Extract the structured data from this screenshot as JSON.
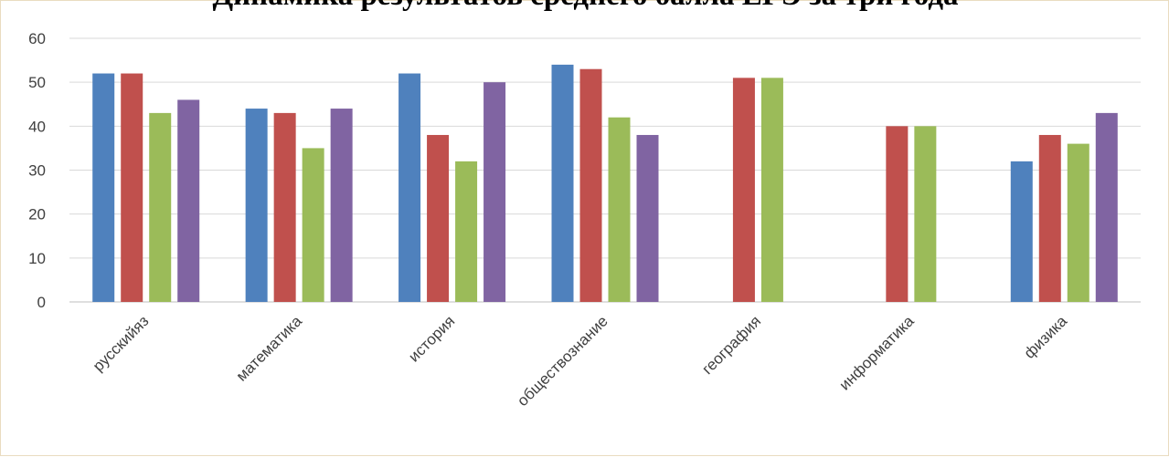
{
  "chart_data": {
    "type": "bar",
    "title": "Динамика результатов среднего балла ЕГЭ за три года",
    "categories": [
      "русскийяз",
      "математика",
      "история",
      "обществознание",
      "география",
      "информатика",
      "физика"
    ],
    "series": [
      {
        "values": [
          52,
          44,
          52,
          54,
          null,
          null,
          32
        ],
        "color": "#4f81bd"
      },
      {
        "values": [
          52,
          43,
          38,
          53,
          51,
          40,
          38
        ],
        "color": "#c0504d"
      },
      {
        "values": [
          43,
          35,
          32,
          42,
          51,
          40,
          36
        ],
        "color": "#9bbb59"
      },
      {
        "values": [
          46,
          44,
          50,
          38,
          null,
          null,
          43
        ],
        "color": "#8064a2"
      }
    ],
    "ylim": [
      0,
      60
    ],
    "yticks": [
      0,
      10,
      20,
      30,
      40,
      50,
      60
    ],
    "grid": true,
    "xlabel": "",
    "ylabel": ""
  }
}
